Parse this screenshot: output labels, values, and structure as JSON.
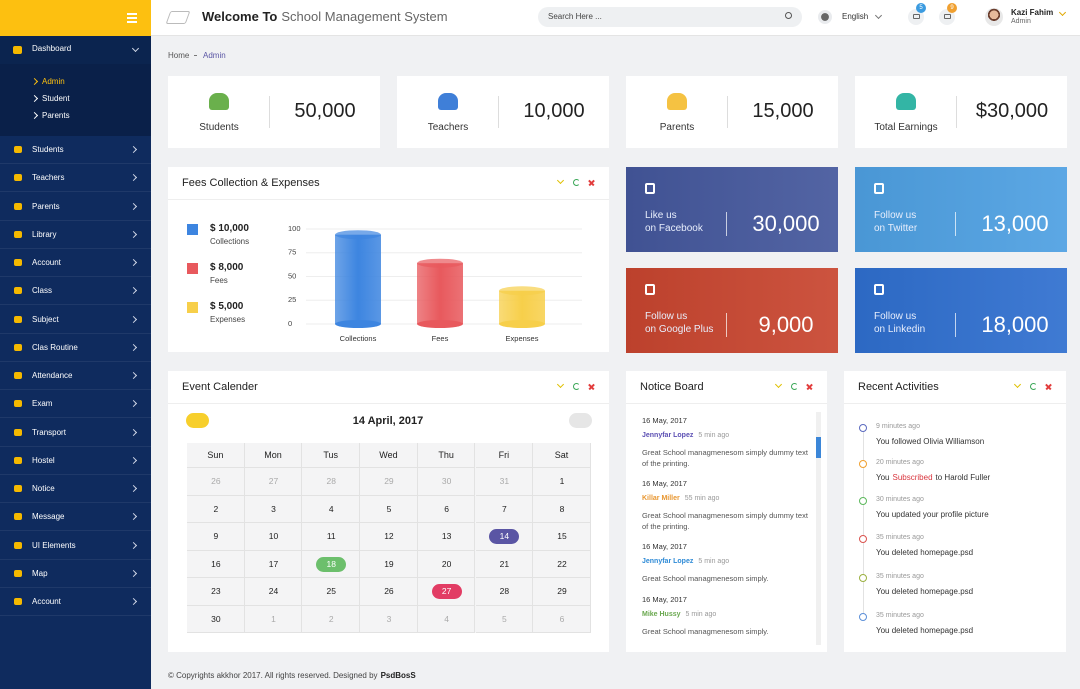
{
  "header": {
    "title_bold": "Welcome To",
    "title_rest": "School Management System",
    "search_placeholder": "Search Here ...",
    "language": "English",
    "mail_count": "5",
    "notif_count": "9",
    "user_name": "Kazi Fahim",
    "user_role": "Admin"
  },
  "sidebar": {
    "dashboard": "Dashboard",
    "dashboard_sub": [
      "Admin",
      "Student",
      "Parents"
    ],
    "items": [
      "Students",
      "Teachers",
      "Parents",
      "Library",
      "Account",
      "Class",
      "Subject",
      "Clas Routine",
      "Attendance",
      "Exam",
      "Transport",
      "Hostel",
      "Notice",
      "Message",
      "UI Elements",
      "Map",
      "Account"
    ]
  },
  "breadcrumb": [
    "Home",
    "Admin"
  ],
  "stats": [
    {
      "label": "Students",
      "value": "50,000",
      "color": "#6ab04c"
    },
    {
      "label": "Teachers",
      "value": "10,000",
      "color": "#3f7fd8"
    },
    {
      "label": "Parents",
      "value": "15,000",
      "color": "#f5c242"
    },
    {
      "label": "Total Earnings",
      "value": "$30,000",
      "color": "#33b5a5"
    }
  ],
  "social": [
    {
      "line1": "Like us",
      "line2": "on Facebook",
      "value": "30,000",
      "color": "#44579c"
    },
    {
      "line1": "Follow us",
      "line2": "on Twitter",
      "value": "13,000",
      "color": "#4ea0e2"
    },
    {
      "line1": "Follow us",
      "line2": "on Google Plus",
      "value": "9,000",
      "color": "#c8452f"
    },
    {
      "line1": "Follow us",
      "line2": "on Linkedin",
      "value": "18,000",
      "color": "#2f6fcf"
    }
  ],
  "fees": {
    "title": "Fees Collection & Expenses",
    "legend": [
      {
        "amount": "$ 10,000",
        "label": "Collections",
        "color": "#3d85e0"
      },
      {
        "amount": "$ 8,000",
        "label": "Fees",
        "color": "#e8595d"
      },
      {
        "amount": "$ 5,000",
        "label": "Expenses",
        "color": "#f7cf4a"
      }
    ],
    "chart": {
      "type": "bar",
      "categories": [
        "Collections",
        "Fees",
        "Expenses"
      ],
      "values": [
        94,
        64,
        35
      ],
      "ylim": [
        0,
        100
      ],
      "yticks": [
        0,
        25,
        50,
        75,
        100
      ],
      "grid": true
    }
  },
  "calendar": {
    "title": "Event Calender",
    "month": "14 April, 2017",
    "weekdays": [
      "Sun",
      "Mon",
      "Tus",
      "Wed",
      "Thu",
      "Fri",
      "Sat"
    ],
    "prev_days": [
      26,
      27,
      28,
      29,
      30,
      31
    ],
    "days": [
      1,
      2,
      3,
      4,
      5,
      6,
      7,
      8,
      9,
      10,
      11,
      12,
      13,
      14,
      15,
      16,
      17,
      18,
      19,
      20,
      21,
      22,
      23,
      24,
      25,
      26,
      27,
      28,
      29,
      30
    ],
    "next_days": [
      1,
      2,
      3,
      4,
      5,
      6
    ],
    "highlights": [
      {
        "day": 14,
        "color": "#5a55a4"
      },
      {
        "day": 18,
        "color": "#6cbf6c"
      },
      {
        "day": 27,
        "color": "#e23c64"
      }
    ]
  },
  "notice": {
    "title": "Notice Board",
    "items": [
      {
        "date": "16 May, 2017",
        "author": "Jennyfar Lopez",
        "time": "5 min ago",
        "text": "Great School managmenesom simply dummy text of the printing.",
        "color": "#5b4fb3"
      },
      {
        "date": "16 May, 2017",
        "author": "Killar Miller",
        "time": "55 min ago",
        "text": "Great School managmenesom simply dummy text of the printing.",
        "color": "#e8962f"
      },
      {
        "date": "16 May, 2017",
        "author": "Jennyfar Lopez",
        "time": "5 min ago",
        "text": "Great School managmenesom simply.",
        "color": "#2d8ad6"
      },
      {
        "date": "16 May, 2017",
        "author": "Mike Hussy",
        "time": "5 min ago",
        "text": "Great School managmenesom simply.",
        "color": "#6aa84f"
      }
    ]
  },
  "activities": {
    "title": "Recent Activities",
    "items": [
      {
        "time": "9 minutes ago",
        "text": "You followed Olivia Williamson",
        "color": "#5b6abf"
      },
      {
        "time": "20 minutes ago",
        "pre": "You",
        "highlight": "Subscribed",
        "post": "to Harold Fuller",
        "color": "#f0a030"
      },
      {
        "time": "30 minutes ago",
        "text": "You updated your profile picture",
        "color": "#5cb85c"
      },
      {
        "time": "35 minutes ago",
        "text": "You deleted homepage.psd",
        "color": "#d9534f"
      },
      {
        "time": "35 minutes ago",
        "text": "You deleted homepage.psd",
        "color": "#9bb040"
      },
      {
        "time": "35 minutes ago",
        "text": "You deleted homepage.psd",
        "color": "#5b8fd8"
      }
    ]
  },
  "footer": {
    "text": "© Copyrights akkhor 2017. All rights reserved. Designed by",
    "brand": "PsdBosS"
  }
}
